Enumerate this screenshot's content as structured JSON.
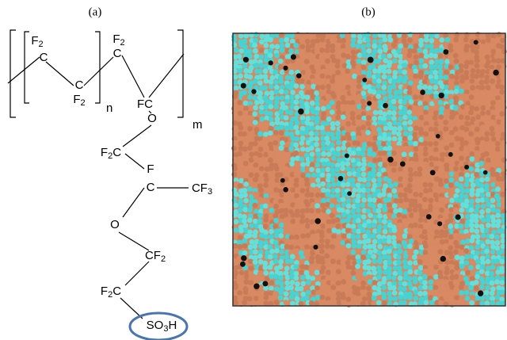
{
  "panels": {
    "a": "(a)",
    "b": "(b)"
  },
  "structure": {
    "atoms": [
      "F2",
      "C",
      "C",
      "F2",
      "F2",
      "C",
      "FC",
      "O",
      "F2C",
      "F",
      "C",
      "CF3",
      "O",
      "CF2",
      "F2C",
      "SO3H"
    ],
    "repeat": [
      "n",
      "m"
    ]
  }
}
